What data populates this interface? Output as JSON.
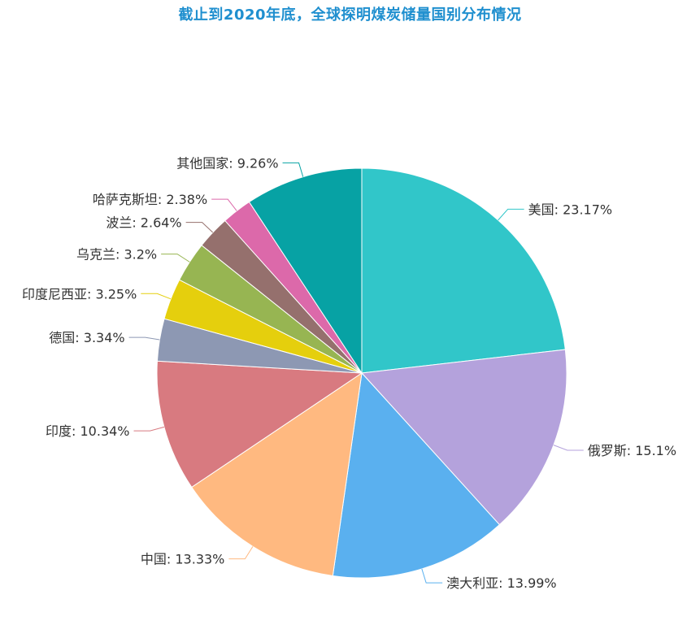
{
  "chart_data": {
    "type": "pie",
    "title": "截止到2020年底，全球探明煤炭储量国别分布情况",
    "slices": [
      {
        "name": "美国",
        "value": 23.17,
        "color": "#31c6c9"
      },
      {
        "name": "俄罗斯",
        "value": 15.1,
        "color": "#b4a2dc"
      },
      {
        "name": "澳大利亚",
        "value": 13.99,
        "color": "#5ab0ef"
      },
      {
        "name": "中国",
        "value": 13.33,
        "color": "#ffb980"
      },
      {
        "name": "印度",
        "value": 10.34,
        "color": "#d87a80"
      },
      {
        "name": "德国",
        "value": 3.34,
        "color": "#8d98b3"
      },
      {
        "name": "印度尼西亚",
        "value": 3.25,
        "color": "#e5cf0d"
      },
      {
        "name": "乌克兰",
        "value": 3.2,
        "color": "#97b552"
      },
      {
        "name": "波兰",
        "value": 2.64,
        "color": "#95706d"
      },
      {
        "name": "哈萨克斯坦",
        "value": 2.38,
        "color": "#dc69aa"
      },
      {
        "name": "其他国家",
        "value": 9.26,
        "color": "#07a2a4"
      }
    ],
    "label_format": "{name}: {value}%"
  }
}
